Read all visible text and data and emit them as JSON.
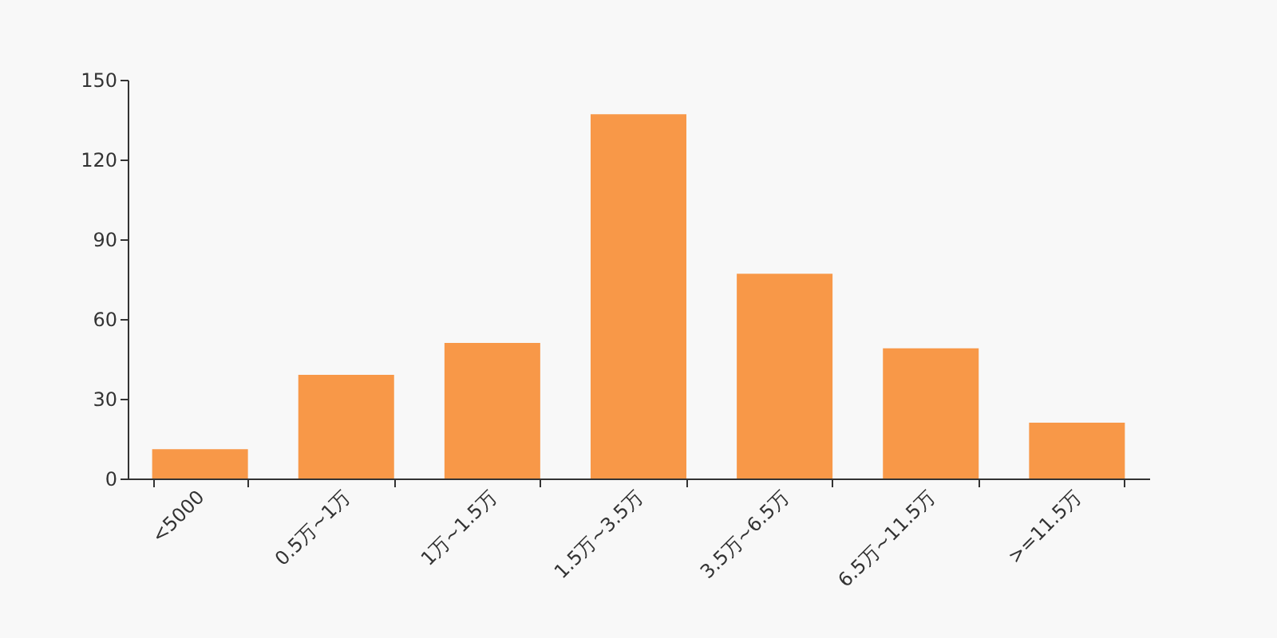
{
  "chart_data": {
    "type": "bar",
    "categories": [
      "<5000",
      "0.5万~1万",
      "1万~1.5万",
      "1.5万~3.5万",
      "3.5万~6.5万",
      "6.5万~11.5万",
      ">=11.5万"
    ],
    "values": [
      11,
      39,
      51,
      137,
      77,
      49,
      21
    ],
    "color": "#f89848",
    "ylim": [
      0,
      150
    ],
    "yticks": [
      0,
      30,
      60,
      90,
      120,
      150
    ],
    "grid": false
  }
}
